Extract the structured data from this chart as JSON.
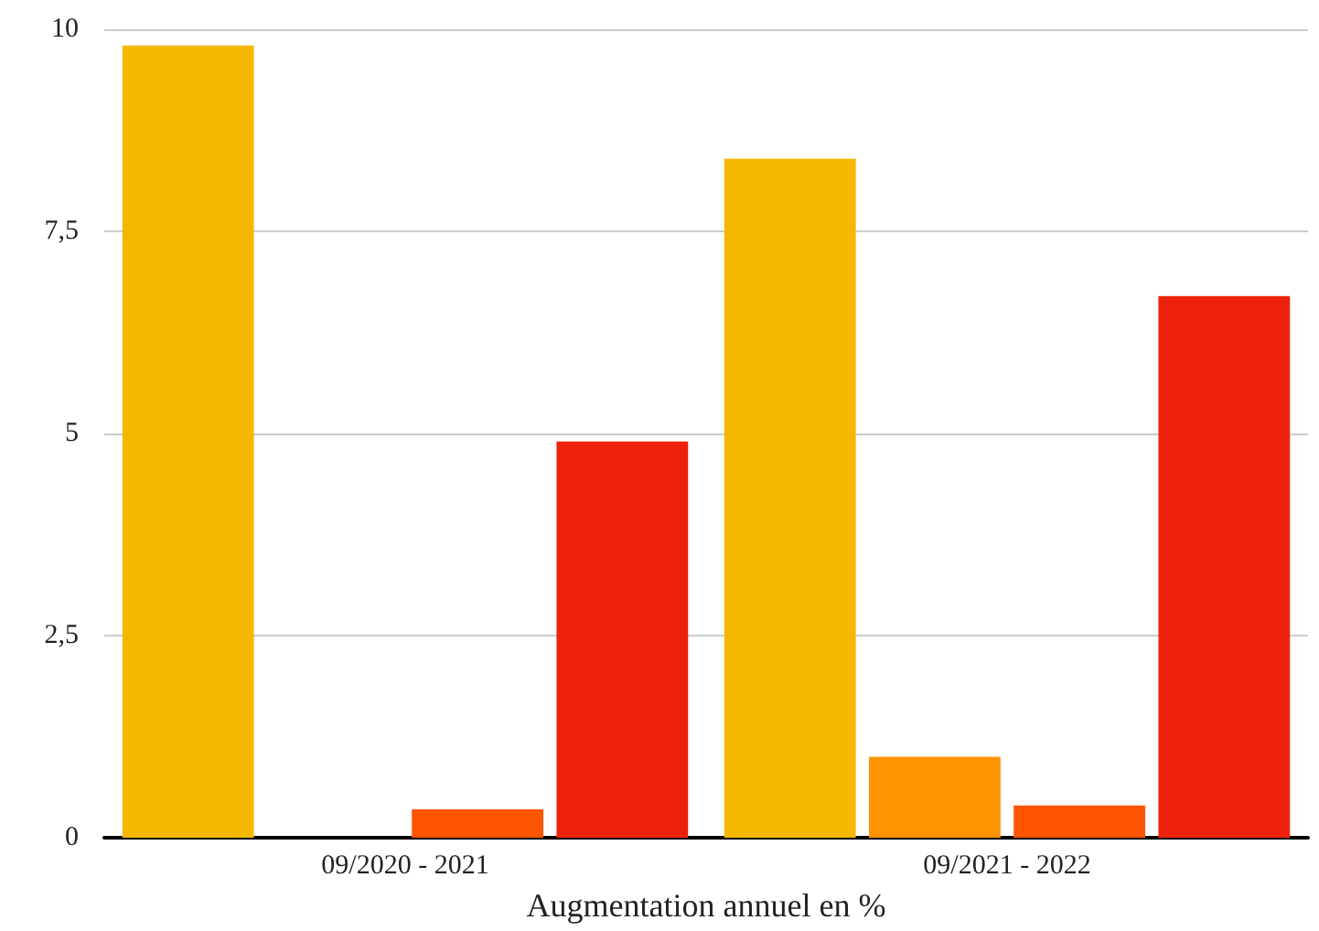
{
  "chart_data": {
    "type": "bar",
    "xlabel": "Augmentation annuel en %",
    "categories": [
      "09/2020 - 2021",
      "09/2021 - 2022"
    ],
    "series": [
      {
        "color": "#f5b800",
        "values": [
          9.8,
          8.4
        ]
      },
      {
        "color": "#ff9300",
        "values": [
          0,
          1.0
        ]
      },
      {
        "color": "#ff5500",
        "values": [
          0.35,
          0.4
        ]
      },
      {
        "color": "#ee220c",
        "values": [
          4.9,
          6.7
        ]
      }
    ],
    "ylim": [
      0,
      10
    ],
    "yticks": [
      0,
      {
        "value": 2.5,
        "label": "2,5"
      },
      5,
      {
        "value": 7.5,
        "label": "7,5"
      },
      10
    ],
    "grid": "y"
  }
}
